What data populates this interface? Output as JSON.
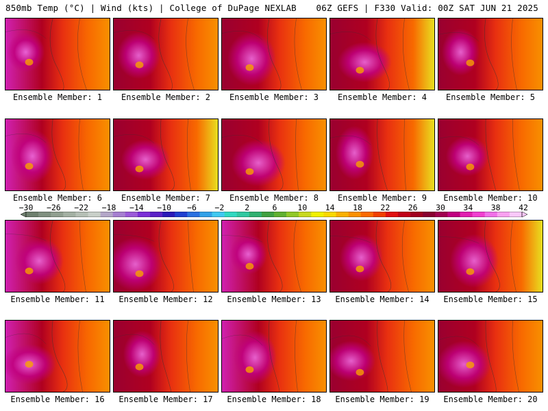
{
  "header": {
    "left": "850mb Temp (°C) | Wind (kts) | College of DuPage NEXLAB",
    "right": "06Z GEFS | F330 Valid: 00Z SAT JUN 21 2025"
  },
  "panels": [
    {
      "label": "Ensemble Member: 1"
    },
    {
      "label": "Ensemble Member: 2"
    },
    {
      "label": "Ensemble Member: 3"
    },
    {
      "label": "Ensemble Member: 4"
    },
    {
      "label": "Ensemble Member: 5"
    },
    {
      "label": "Ensemble Member: 6"
    },
    {
      "label": "Ensemble Member: 7"
    },
    {
      "label": "Ensemble Member: 8"
    },
    {
      "label": "Ensemble Member: 9"
    },
    {
      "label": "Ensemble Member: 10"
    },
    {
      "label": "Ensemble Member: 11"
    },
    {
      "label": "Ensemble Member: 12"
    },
    {
      "label": "Ensemble Member: 13"
    },
    {
      "label": "Ensemble Member: 14"
    },
    {
      "label": "Ensemble Member: 15"
    },
    {
      "label": "Ensemble Member: 16"
    },
    {
      "label": "Ensemble Member: 17"
    },
    {
      "label": "Ensemble Member: 18"
    },
    {
      "label": "Ensemble Member: 19"
    },
    {
      "label": "Ensemble Member: 20"
    }
  ],
  "colorbar": {
    "labels": [
      "-30",
      "-26",
      "-22",
      "-18",
      "-14",
      "-10",
      "-6",
      "-2",
      "2",
      "6",
      "10",
      "14",
      "18",
      "22",
      "26",
      "30",
      "34",
      "38",
      "42"
    ],
    "colors": [
      "#6d7f6d",
      "#7f8f7f",
      "#909f90",
      "#a3b0a3",
      "#b5bfb5",
      "#c8cfc8",
      "#b3a6c8",
      "#a57fd0",
      "#9a5ad8",
      "#7b2fd6",
      "#5a22c6",
      "#2a1ab8",
      "#1f3fd0",
      "#2a70e0",
      "#30a0e8",
      "#40c8f0",
      "#30d8c0",
      "#30c8a0",
      "#30b070",
      "#40a040",
      "#60b030",
      "#90c828",
      "#c8d820",
      "#f0f000",
      "#f8d800",
      "#f8b000",
      "#f89000",
      "#f86a00",
      "#f04000",
      "#e01010",
      "#c00018",
      "#a00020",
      "#880030",
      "#a00050",
      "#c00080",
      "#e020b0",
      "#f040d0",
      "#f070e8",
      "#f8a0f0",
      "#f8c8f8"
    ]
  }
}
